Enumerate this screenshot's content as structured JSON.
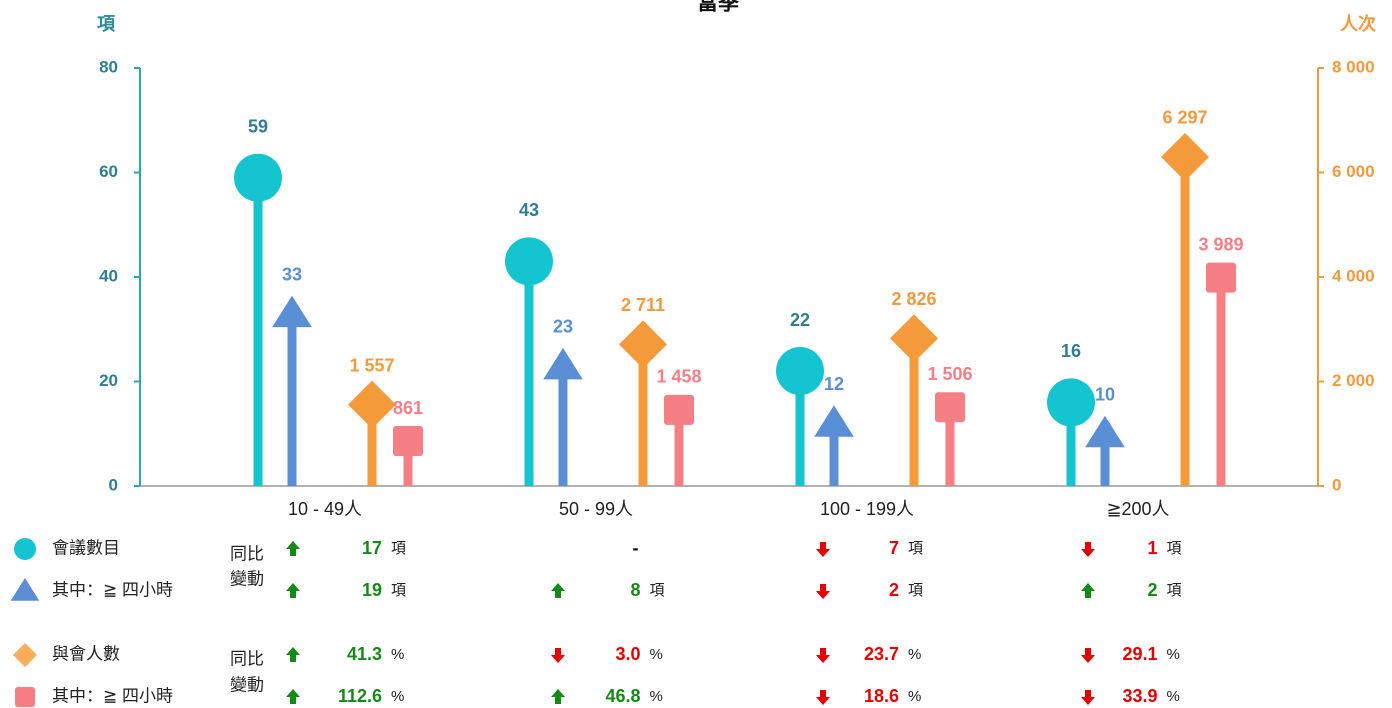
{
  "chart_data": {
    "type": "lollipop",
    "title": "當季",
    "y_label": "項",
    "y2_label": "人次",
    "categories": [
      "10 - 49人",
      "50 - 99人",
      "100 - 199人",
      "≧200人"
    ],
    "ylim": [
      0,
      80
    ],
    "yticks": [
      0,
      20,
      40,
      60,
      80
    ],
    "y2lim": [
      0,
      8000
    ],
    "y2ticks": [
      0,
      {
        "value": 2000,
        "label": "2 000"
      },
      {
        "value": 4000,
        "label": "4 000"
      },
      {
        "value": 6000,
        "label": "6 000"
      },
      {
        "value": 8000,
        "label": "8 000"
      }
    ],
    "yoy_label": [
      "同比",
      "變動"
    ],
    "up_color": "#168a16",
    "down_color": "#e60000",
    "series": [
      {
        "name": "會議數目",
        "color": "#14c4d0",
        "marker": "circle",
        "values": [
          59,
          43,
          22,
          16
        ],
        "changes": [
          {
            "direction": "up",
            "value": 17,
            "unit": "項"
          },
          {
            "label": "-"
          },
          {
            "direction": "down",
            "value": 7,
            "unit": "項"
          },
          {
            "direction": "down",
            "value": 1,
            "unit": "項"
          }
        ]
      },
      {
        "name": "其中：≧ 四小時",
        "color": "#5a8fd6",
        "marker": "triangle",
        "values": [
          33,
          23,
          12,
          10
        ],
        "changes": [
          {
            "direction": "up",
            "value": 19,
            "unit": "項"
          },
          {
            "direction": "up",
            "value": 8,
            "unit": "項"
          },
          {
            "direction": "down",
            "value": 2,
            "unit": "項"
          },
          {
            "direction": "up",
            "value": 2,
            "unit": "項"
          }
        ]
      },
      {
        "name": "與會人數",
        "color": "#f59a3a",
        "marker": "diamond",
        "axis": "y2",
        "values": [
          1557,
          2711,
          2826,
          6297
        ],
        "value_labels": [
          "1 557",
          "2 711",
          "2 826",
          "6 297"
        ],
        "changes": [
          {
            "direction": "up",
            "value": 41.3,
            "unit": "%"
          },
          {
            "direction": "down",
            "value": 3.0,
            "label": "3.0",
            "unit": "%"
          },
          {
            "direction": "down",
            "value": 23.7,
            "unit": "%"
          },
          {
            "direction": "down",
            "value": 29.1,
            "unit": "%"
          }
        ]
      },
      {
        "name": "其中：≧ 四小時",
        "color": "#f67f86",
        "marker": "square",
        "axis": "y2",
        "values": [
          861,
          1458,
          1506,
          3989
        ],
        "value_labels": [
          "861",
          "1 458",
          "1 506",
          "3 989"
        ],
        "changes": [
          {
            "direction": "up",
            "value": 112.6,
            "unit": "%"
          },
          {
            "direction": "up",
            "value": 46.8,
            "unit": "%"
          },
          {
            "direction": "down",
            "value": 18.6,
            "unit": "%"
          },
          {
            "direction": "down",
            "value": 33.9,
            "unit": "%"
          }
        ]
      }
    ]
  }
}
